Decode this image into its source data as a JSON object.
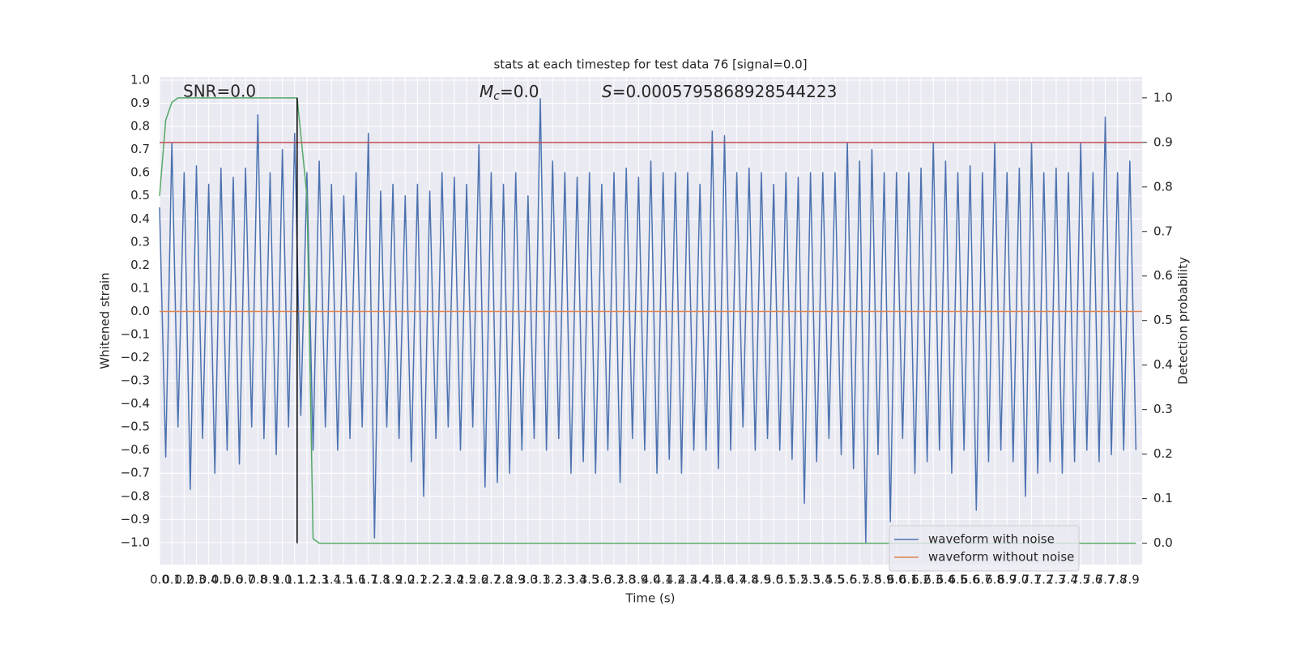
{
  "chart_data": {
    "type": "line",
    "title": "stats at each timestep for test data 76 [signal=0.0]",
    "xlabel": "Time (s)",
    "ylabel": "Whitened strain",
    "y2label": "Detection probability",
    "annotations": [
      {
        "text": "SNR=0.0"
      },
      {
        "italic": "M",
        "sub": "c",
        "text": "=0.0"
      },
      {
        "italic": "S",
        "text": "=0.0005795868928544223"
      }
    ],
    "xlim": [
      0,
      8
    ],
    "ylim": [
      -1.095,
      1.014
    ],
    "y2lim": [
      -0.048,
      1.047
    ],
    "grid": true,
    "legend": "lower right",
    "xticks": [
      {
        "value": 0,
        "label": "0.0"
      },
      0.1,
      0.2,
      0.3,
      0.4,
      0.5,
      0.6,
      0.7,
      0.8,
      0.9,
      {
        "value": 1,
        "label": "1.0"
      },
      1.1,
      1.2,
      1.3,
      1.4,
      1.5,
      1.6,
      1.7,
      1.8,
      1.9,
      {
        "value": 2,
        "label": "2.0"
      },
      2.1,
      2.2,
      2.3,
      2.4,
      2.5,
      2.6,
      2.7,
      2.8,
      2.9,
      {
        "value": 3,
        "label": "3.0"
      },
      3.1,
      3.2,
      3.3,
      3.4,
      3.5,
      3.6,
      3.7,
      3.8,
      3.9,
      {
        "value": 4,
        "label": "4.0"
      },
      4.1,
      4.2,
      4.3,
      4.4,
      4.5,
      4.6,
      4.7,
      4.8,
      4.9,
      {
        "value": 5,
        "label": "5.0"
      },
      5.1,
      5.2,
      5.3,
      5.4,
      5.5,
      5.6,
      5.7,
      5.8,
      5.9,
      {
        "value": 6,
        "label": "6.0"
      },
      6.1,
      6.2,
      6.3,
      6.4,
      6.5,
      6.6,
      6.7,
      6.8,
      6.9,
      {
        "value": 7,
        "label": "7.0"
      },
      7.1,
      7.2,
      7.3,
      7.4,
      7.5,
      7.6,
      7.7,
      7.8,
      7.9
    ],
    "yticks": [
      {
        "value": -1,
        "label": "−1.0"
      },
      {
        "value": -0.9,
        "label": "−0.9"
      },
      {
        "value": -0.8,
        "label": "−0.8"
      },
      {
        "value": -0.7,
        "label": "−0.7"
      },
      {
        "value": -0.6,
        "label": "−0.6"
      },
      {
        "value": -0.5,
        "label": "−0.5"
      },
      {
        "value": -0.4,
        "label": "−0.4"
      },
      {
        "value": -0.3,
        "label": "−0.3"
      },
      {
        "value": -0.2,
        "label": "−0.2"
      },
      {
        "value": -0.1,
        "label": "−0.1"
      },
      {
        "value": 0,
        "label": "0.0"
      },
      0.1,
      0.2,
      0.3,
      0.4,
      0.5,
      0.6,
      0.7,
      0.8,
      0.9,
      {
        "value": 1,
        "label": "1.0"
      }
    ],
    "y2ticks": [
      {
        "value": 0,
        "label": "0.0"
      },
      0.1,
      0.2,
      0.3,
      0.4,
      0.5,
      0.6,
      0.7,
      0.8,
      0.9,
      {
        "value": 1,
        "label": "1.0"
      }
    ],
    "series": [
      {
        "name": "waveform with noise",
        "color": "#4c72b0",
        "x": [
          0,
          0.05,
          0.1,
          0.15,
          0.2,
          0.25,
          0.3,
          0.35,
          0.4,
          0.45,
          0.5,
          0.55,
          0.6,
          0.65,
          0.7,
          0.75,
          0.8,
          0.85,
          0.9,
          0.95,
          1,
          1.05,
          1.1,
          1.15,
          1.2,
          1.25,
          1.3,
          1.35,
          1.4,
          1.45,
          1.5,
          1.55,
          1.6,
          1.65,
          1.7,
          1.75,
          1.8,
          1.85,
          1.9,
          1.95,
          2,
          2.05,
          2.1,
          2.15,
          2.2,
          2.25,
          2.3,
          2.35,
          2.4,
          2.45,
          2.5,
          2.55,
          2.6,
          2.65,
          2.7,
          2.75,
          2.8,
          2.85,
          2.9,
          2.95,
          3,
          3.05,
          3.1,
          3.15,
          3.2,
          3.25,
          3.3,
          3.35,
          3.4,
          3.45,
          3.5,
          3.55,
          3.6,
          3.65,
          3.7,
          3.75,
          3.8,
          3.85,
          3.9,
          3.95,
          4,
          4.05,
          4.1,
          4.15,
          4.2,
          4.25,
          4.3,
          4.35,
          4.4,
          4.45,
          4.5,
          4.55,
          4.6,
          4.65,
          4.7,
          4.75,
          4.8,
          4.85,
          4.9,
          4.95,
          5,
          5.05,
          5.1,
          5.15,
          5.2,
          5.25,
          5.3,
          5.35,
          5.4,
          5.45,
          5.5,
          5.55,
          5.6,
          5.65,
          5.7,
          5.75,
          5.8,
          5.85,
          5.9,
          5.95,
          6,
          6.05,
          6.1,
          6.15,
          6.2,
          6.25,
          6.3,
          6.35,
          6.4,
          6.45,
          6.5,
          6.55,
          6.6,
          6.65,
          6.7,
          6.75,
          6.8,
          6.85,
          6.9,
          6.95,
          7,
          7.05,
          7.1,
          7.15,
          7.2,
          7.25,
          7.3,
          7.35,
          7.4,
          7.45,
          7.5,
          7.55,
          7.6,
          7.65,
          7.7,
          7.75,
          7.8,
          7.85,
          7.9,
          7.95
        ],
        "values": [
          0.45,
          -0.63,
          0.73,
          -0.5,
          0.6,
          -0.77,
          0.63,
          -0.55,
          0.55,
          -0.7,
          0.62,
          -0.6,
          0.58,
          -0.66,
          0.62,
          -0.5,
          0.85,
          -0.55,
          0.6,
          -0.62,
          0.7,
          -0.5,
          0.77,
          -0.45,
          0.6,
          -0.6,
          0.65,
          -0.5,
          0.55,
          -0.6,
          0.5,
          -0.55,
          0.6,
          -0.5,
          0.77,
          -0.98,
          0.52,
          -0.5,
          0.55,
          -0.55,
          0.5,
          -0.65,
          0.55,
          -0.8,
          0.52,
          -0.55,
          0.6,
          -0.5,
          0.58,
          -0.6,
          0.55,
          -0.5,
          0.72,
          -0.76,
          0.6,
          -0.74,
          0.55,
          -0.7,
          0.6,
          -0.6,
          0.5,
          -0.55,
          0.92,
          -0.6,
          0.65,
          -0.55,
          0.6,
          -0.7,
          0.58,
          -0.65,
          0.6,
          -0.7,
          0.55,
          -0.6,
          0.6,
          -0.74,
          0.62,
          -0.55,
          0.58,
          -0.6,
          0.65,
          -0.7,
          0.6,
          -0.64,
          0.6,
          -0.7,
          0.6,
          -0.6,
          0.55,
          -0.6,
          0.78,
          -0.68,
          0.76,
          -0.6,
          0.6,
          -0.5,
          0.62,
          -0.6,
          0.6,
          -0.55,
          0.55,
          -0.6,
          0.6,
          -0.64,
          0.58,
          -0.83,
          0.6,
          -0.65,
          0.6,
          -0.55,
          0.6,
          -0.62,
          0.73,
          -0.68,
          0.65,
          -1.0,
          0.7,
          -0.62,
          0.6,
          -0.91,
          0.6,
          -0.55,
          0.6,
          -0.7,
          0.62,
          -0.65,
          0.73,
          -0.6,
          0.65,
          -0.7,
          0.6,
          -0.6,
          0.63,
          -0.86,
          0.6,
          -0.65,
          0.73,
          -0.6,
          0.6,
          -0.65,
          0.62,
          -0.8,
          0.73,
          -0.7,
          0.6,
          -0.65,
          0.62,
          -0.7,
          0.6,
          -0.65,
          0.73,
          -0.6,
          0.6,
          -0.65,
          0.84,
          -0.62,
          0.6,
          -0.6,
          0.65,
          -0.6
        ]
      },
      {
        "name": "waveform without noise",
        "color": "#dd8452",
        "x": [
          0,
          8
        ],
        "values": [
          0,
          0
        ]
      },
      {
        "color": "#55a868",
        "axis": "y2",
        "x": [
          0,
          0.05,
          0.1,
          0.15,
          0.2,
          0.3,
          0.5,
          1,
          1.12,
          1.2,
          1.25,
          1.3,
          2,
          4,
          6,
          7.95
        ],
        "values": [
          0.78,
          0.95,
          0.99,
          1,
          1,
          1,
          1,
          1,
          1,
          0.78,
          0.01,
          0,
          0,
          0,
          0,
          0
        ]
      }
    ],
    "hlines": [
      {
        "value": 0.9,
        "axis": "y2",
        "color": "#c44e52"
      }
    ],
    "vlines": [
      {
        "x": 1.12,
        "from": 0,
        "to": 1,
        "axis": "y2",
        "color": "#000000"
      }
    ]
  }
}
